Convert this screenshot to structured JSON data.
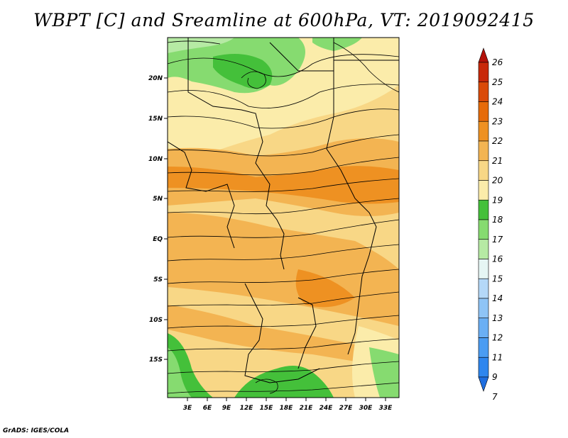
{
  "title": "WBPT [C] and Sreamline at 600hPa, VT: 2019092415",
  "footer": "GrADS: IGES/COLA",
  "map": {
    "lon_ticks": [
      "3E",
      "6E",
      "9E",
      "12E",
      "15E",
      "18E",
      "21E",
      "24E",
      "27E",
      "30E",
      "33E"
    ],
    "lat_ticks": [
      "20N",
      "15N",
      "10N",
      "5N",
      "EQ",
      "5S",
      "10S",
      "15S"
    ]
  },
  "colorbar": {
    "labels": [
      "7",
      "9",
      "11",
      "12",
      "13",
      "14",
      "15",
      "16",
      "17",
      "18",
      "19",
      "20",
      "21",
      "22",
      "23",
      "24",
      "25",
      "26"
    ],
    "colors": [
      "#1e6ee0",
      "#2e86ee",
      "#4a9cf2",
      "#6aaff4",
      "#8ec4f6",
      "#b4d8f8",
      "#e6f6f4",
      "#b6eaa4",
      "#86db70",
      "#44c03a",
      "#fbecaa",
      "#f8d786",
      "#f3b452",
      "#ee9122",
      "#e66b0a",
      "#da4a08",
      "#c8280a",
      "#b4120a"
    ]
  }
}
